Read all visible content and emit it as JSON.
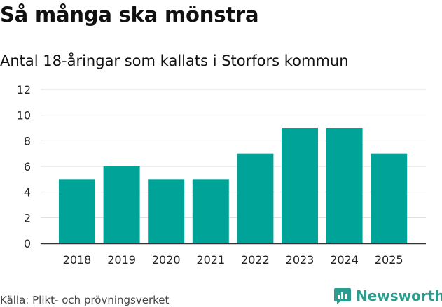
{
  "chart_data": {
    "type": "bar",
    "title": "Så många ska mönstra",
    "subtitle": "Antal 18-åringar som kallats i Storfors kommun",
    "categories": [
      "2018",
      "2019",
      "2020",
      "2021",
      "2022",
      "2023",
      "2024",
      "2025"
    ],
    "values": [
      5,
      6,
      5,
      5,
      7,
      9,
      9,
      7
    ],
    "ylim": [
      0,
      12
    ],
    "yticks": [
      0,
      2,
      4,
      6,
      8,
      10,
      12
    ],
    "xlabel": "",
    "ylabel": "",
    "grid": true,
    "bar_color": "#00a398"
  },
  "footer": {
    "source": "Källa: Plikt- och prövningsverket",
    "brand": "Newsworthy",
    "brand_icon": "bar-chart-chat-icon",
    "brand_color": "#2a9d8f"
  }
}
